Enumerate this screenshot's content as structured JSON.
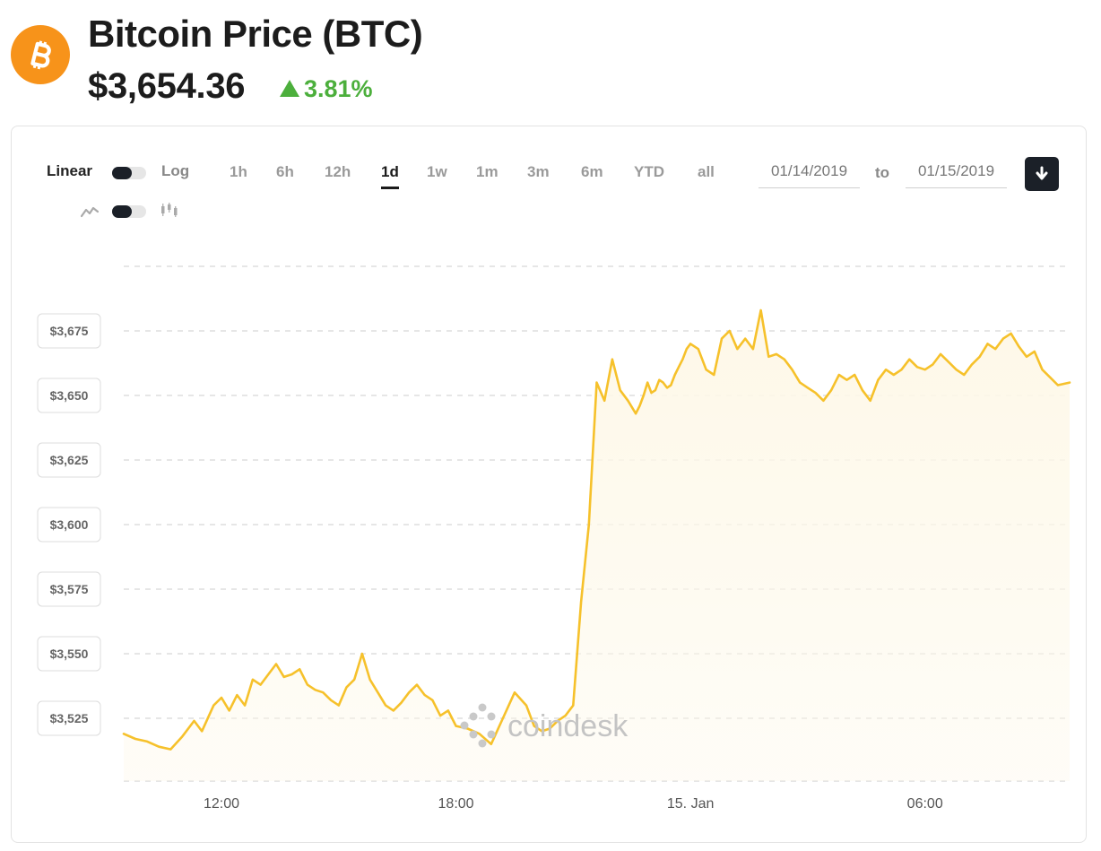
{
  "header": {
    "title": "Bitcoin Price",
    "ticker": "(BTC)",
    "price": "$3,654.36",
    "change": "3.81%",
    "logo_icon": "bitcoin-logo-icon",
    "colors": {
      "logo": "#f7931a",
      "change": "#4caf3c"
    }
  },
  "controls": {
    "scale_left": "Linear",
    "scale_right": "Log",
    "chart_style_left_icon": "line-chart-icon",
    "chart_style_right_icon": "candlestick-icon",
    "ranges": [
      "1h",
      "6h",
      "12h",
      "1d",
      "1w",
      "1m",
      "3m",
      "6m",
      "YTD",
      "all"
    ],
    "active_range": "1d",
    "date_from": "01/14/2019",
    "to_label": "to",
    "date_to": "01/15/2019",
    "download_icon": "download-arrow-icon"
  },
  "watermark": "coindesk",
  "chart_data": {
    "type": "area",
    "title": "",
    "xlabel": "",
    "ylabel": "",
    "x_ticks": [
      "12:00",
      "18:00",
      "15. Jan",
      "06:00"
    ],
    "y_ticks": [
      "$3,525",
      "$3,550",
      "$3,575",
      "$3,600",
      "$3,625",
      "$3,650",
      "$3,675"
    ],
    "ylim": [
      3505,
      3700
    ],
    "x_range_hours": [
      9.5,
      33.7
    ],
    "grid": "horizontal dashed",
    "line_color": "#f6c12b",
    "fill_color": "#fef8e8",
    "series": [
      {
        "x": [
          9.5,
          9.8,
          10.1,
          10.4,
          10.7,
          11.0,
          11.3,
          11.5,
          11.8,
          12.0,
          12.2,
          12.4,
          12.6,
          12.8,
          13.0,
          13.2,
          13.4,
          13.6,
          13.8,
          14.0,
          14.2,
          14.4,
          14.6,
          14.8,
          15.0,
          15.2,
          15.4,
          15.6,
          15.8,
          16.0,
          16.2,
          16.4,
          16.6,
          16.8,
          17.0,
          17.2,
          17.4,
          17.6,
          17.8,
          18.0,
          18.3,
          18.6,
          18.9,
          19.2,
          19.5,
          19.8,
          20.0,
          20.2,
          20.4,
          20.6,
          20.8,
          21.0,
          21.2,
          21.4,
          21.6,
          21.8,
          22.0,
          22.2,
          22.4,
          22.6,
          22.7,
          22.8,
          22.9,
          23.0,
          23.1,
          23.2,
          23.3,
          23.4,
          23.5,
          23.6,
          23.7,
          23.8,
          23.9,
          24.0,
          24.2,
          24.4,
          24.6,
          24.8,
          25.0,
          25.2,
          25.4,
          25.6,
          25.8,
          26.0,
          26.2,
          26.4,
          26.6,
          26.8,
          27.0,
          27.2,
          27.4,
          27.6,
          27.8,
          28.0,
          28.2,
          28.4,
          28.6,
          28.8,
          29.0,
          29.2,
          29.4,
          29.6,
          29.8,
          30.0,
          30.2,
          30.4,
          30.6,
          30.8,
          31.0,
          31.2,
          31.4,
          31.6,
          31.8,
          32.0,
          32.2,
          32.4,
          32.6,
          32.8,
          33.0,
          33.2,
          33.4,
          33.7
        ],
        "values": [
          3519,
          3517,
          3516,
          3514,
          3513,
          3518,
          3524,
          3520,
          3530,
          3533,
          3528,
          3534,
          3530,
          3540,
          3538,
          3542,
          3546,
          3541,
          3542,
          3544,
          3538,
          3536,
          3535,
          3532,
          3530,
          3537,
          3540,
          3550,
          3540,
          3535,
          3530,
          3528,
          3531,
          3535,
          3538,
          3534,
          3532,
          3526,
          3528,
          3522,
          3521,
          3519,
          3515,
          3525,
          3535,
          3530,
          3522,
          3520,
          3521,
          3524,
          3526,
          3530,
          3570,
          3600,
          3655,
          3648,
          3664,
          3652,
          3648,
          3643,
          3646,
          3650,
          3655,
          3651,
          3652,
          3656,
          3655,
          3653,
          3654,
          3658,
          3661,
          3664,
          3668,
          3670,
          3668,
          3660,
          3658,
          3672,
          3675,
          3668,
          3672,
          3668,
          3683,
          3665,
          3666,
          3664,
          3660,
          3655,
          3653,
          3651,
          3648,
          3652,
          3658,
          3656,
          3658,
          3652,
          3648,
          3656,
          3660,
          3658,
          3660,
          3664,
          3661,
          3660,
          3662,
          3666,
          3663,
          3660,
          3658,
          3662,
          3665,
          3670,
          3668,
          3672,
          3674,
          3669,
          3665,
          3667,
          3660,
          3657,
          3654,
          3655
        ]
      }
    ]
  }
}
